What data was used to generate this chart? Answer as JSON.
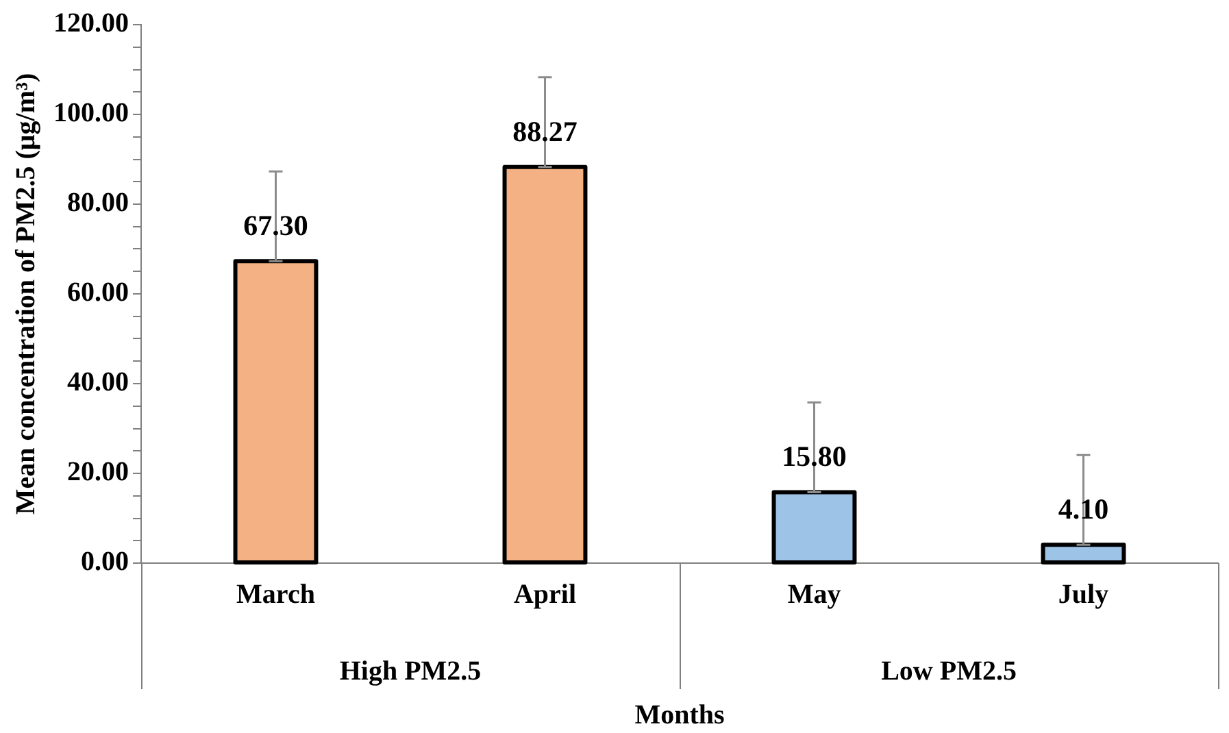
{
  "chart_data": {
    "type": "bar",
    "xlabel": "Months",
    "ylabel": "Mean concentration of PM2.5 (μg/m³)",
    "categories": [
      "March",
      "April",
      "May",
      "July"
    ],
    "values": [
      67.3,
      88.27,
      15.8,
      4.1
    ],
    "colors": [
      "#f4b183",
      "#f4b183",
      "#9dc3e6",
      "#9dc3e6"
    ],
    "errors": [
      [
        67.3,
        87.3
      ],
      [
        88.27,
        108.27
      ],
      [
        15.8,
        35.8
      ],
      [
        4.1,
        24.1
      ]
    ],
    "ylim": [
      0,
      120
    ],
    "yticks": [
      {
        "value": 0,
        "label": "0.00"
      },
      {
        "value": 5,
        "label": null
      },
      {
        "value": 10,
        "label": null
      },
      {
        "value": 15,
        "label": null
      },
      {
        "value": 20,
        "label": "20.00"
      },
      {
        "value": 25,
        "label": null
      },
      {
        "value": 30,
        "label": null
      },
      {
        "value": 35,
        "label": null
      },
      {
        "value": 40,
        "label": "40.00"
      },
      {
        "value": 45,
        "label": null
      },
      {
        "value": 50,
        "label": null
      },
      {
        "value": 55,
        "label": null
      },
      {
        "value": 60,
        "label": "60.00"
      },
      {
        "value": 65,
        "label": null
      },
      {
        "value": 70,
        "label": null
      },
      {
        "value": 75,
        "label": null
      },
      {
        "value": 80,
        "label": "80.00"
      },
      {
        "value": 85,
        "label": null
      },
      {
        "value": 90,
        "label": null
      },
      {
        "value": 95,
        "label": null
      },
      {
        "value": 100,
        "label": "100.00"
      },
      {
        "value": 105,
        "label": null
      },
      {
        "value": 110,
        "label": null
      },
      {
        "value": 115,
        "label": null
      },
      {
        "value": 120,
        "label": "120.00"
      }
    ],
    "annotations": [
      "High PM2.5",
      "Low PM2.5"
    ],
    "value_labels": [
      "67.30",
      "88.27",
      "15.80",
      "4.10"
    ],
    "grid": false,
    "legend": false
  }
}
